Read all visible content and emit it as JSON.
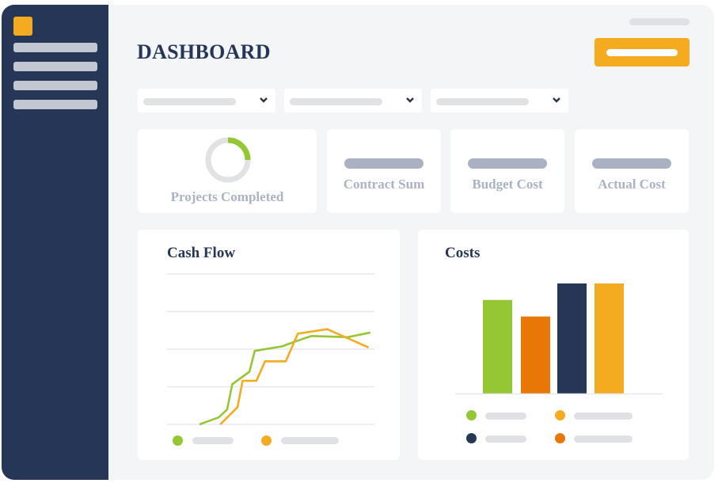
{
  "app": {
    "title": "DASHBOARD",
    "brand_color": "#263657",
    "accent_color": "#f5ab20"
  },
  "sidebar": {
    "logo_icon": "app-logo-square",
    "items": [
      {
        "label": ""
      },
      {
        "label": ""
      },
      {
        "label": ""
      },
      {
        "label": ""
      }
    ]
  },
  "header": {
    "title": "DASHBOARD",
    "user_placeholder": "",
    "primary_button_label": ""
  },
  "filters": [
    {
      "value": "",
      "icon": "chevron-down-icon"
    },
    {
      "value": "",
      "icon": "chevron-down-icon"
    },
    {
      "value": "",
      "icon": "chevron-down-icon"
    }
  ],
  "kpis": [
    {
      "label": "Projects Completed",
      "progress_percent": 25,
      "progress_color": "#95c634",
      "track_color": "#e1e2e4"
    },
    {
      "label": "Contract Sum",
      "value": ""
    },
    {
      "label": "Budget Cost",
      "value": ""
    },
    {
      "label": "Actual Cost",
      "value": ""
    }
  ],
  "cash_flow": {
    "title": "Cash Flow",
    "legend": [
      {
        "color": "#95c634",
        "label": ""
      },
      {
        "color": "#f5ab20",
        "label": ""
      }
    ]
  },
  "costs": {
    "title": "Costs",
    "legend": [
      {
        "color": "#95c634",
        "label": ""
      },
      {
        "color": "#f5ab20",
        "label": ""
      },
      {
        "color": "#263657",
        "label": ""
      },
      {
        "color": "#e97708",
        "label": ""
      }
    ]
  },
  "chart_data": [
    {
      "type": "line",
      "title": "Cash Flow",
      "xlabel": "",
      "ylabel": "",
      "grid": true,
      "gridlines": 5,
      "legend_position": "bottom",
      "ylim": [
        0,
        100
      ],
      "series": [
        {
          "name": "",
          "color": "#95c634",
          "x": [
            0,
            11,
            16,
            19,
            29,
            32,
            48,
            55,
            65,
            86,
            99
          ],
          "y": [
            0,
            6,
            13,
            35,
            46,
            64,
            68,
            72,
            77,
            76,
            80
          ]
        },
        {
          "name": "",
          "color": "#f5ab20",
          "x": [
            12,
            22,
            25,
            33,
            38,
            50,
            57,
            74,
            98
          ],
          "y": [
            0,
            15,
            38,
            38,
            55,
            55,
            79,
            83,
            67
          ]
        }
      ]
    },
    {
      "type": "bar",
      "title": "Costs",
      "xlabel": "",
      "ylabel": "",
      "grid": false,
      "legend_position": "bottom",
      "categories": [
        "",
        "",
        "",
        ""
      ],
      "values": [
        85,
        70,
        100,
        100
      ],
      "colors": [
        "#95c634",
        "#e97708",
        "#263657",
        "#f5ab20"
      ],
      "ylim": [
        0,
        100
      ]
    }
  ]
}
